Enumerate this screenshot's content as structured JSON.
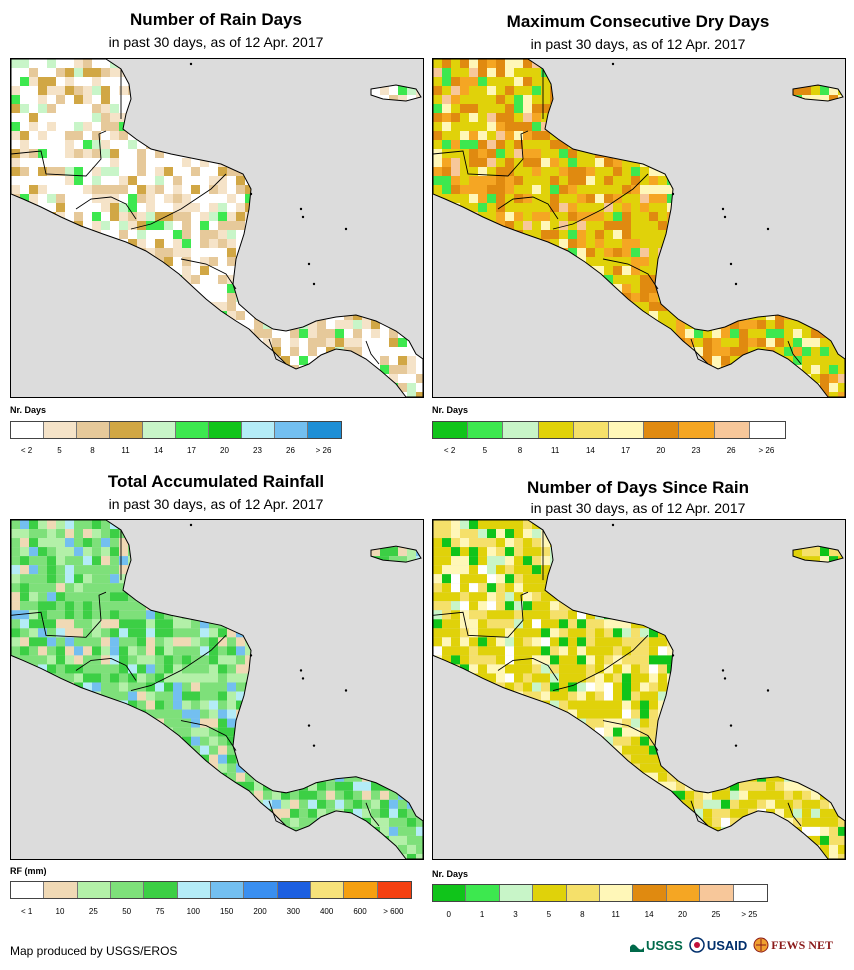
{
  "panels": [
    {
      "title": "Number of Rain Days",
      "subtitle": "in past 30 days, as of 12 Apr. 2017",
      "legend_title": "Nr. Days",
      "ticks": [
        "< 2",
        "5",
        "8",
        "11",
        "14",
        "17",
        "20",
        "23",
        "26",
        "> 26"
      ],
      "colors": [
        "#ffffff",
        "#f5e3c8",
        "#e6c99a",
        "#d1a745",
        "#c8f5c8",
        "#3de84f",
        "#10c41a",
        "#b4ecf7",
        "#73bff0",
        "#1e8fd6"
      ],
      "map_palette": [
        "#ffffff",
        "#f5e3c8",
        "#e6c99a",
        "#d1a745",
        "#c8f5c8",
        "#3de84f"
      ]
    },
    {
      "title": "Maximum Consecutive Dry Days",
      "subtitle": "in past 30 days, as of 12 Apr. 2017",
      "legend_title": "Nr. Days",
      "ticks": [
        "< 2",
        "5",
        "8",
        "11",
        "14",
        "17",
        "20",
        "23",
        "26",
        "> 26"
      ],
      "colors": [
        "#10c41a",
        "#3de84f",
        "#c8f5c8",
        "#e0d20a",
        "#f5e06a",
        "#fff7b8",
        "#e08a10",
        "#f5a623",
        "#f7c79a",
        "#ffffff"
      ],
      "map_palette": [
        "#e0d20a",
        "#e08a10",
        "#f5a623",
        "#fff7b8",
        "#3de84f",
        "#f7c79a"
      ]
    },
    {
      "title": "Total Accumulated Rainfall",
      "subtitle": "in past 30 days, as of 12 Apr. 2017",
      "legend_title": "RF (mm)",
      "ticks": [
        "< 1",
        "10",
        "25",
        "50",
        "75",
        "100",
        "150",
        "200",
        "300",
        "400",
        "600",
        "> 600"
      ],
      "colors": [
        "#ffffff",
        "#f0d9b5",
        "#b3f0a8",
        "#7ee07a",
        "#3ccf45",
        "#b4ecf7",
        "#73bff0",
        "#3a8ff0",
        "#1c5fe0",
        "#f7e27a",
        "#f5a010",
        "#f54010"
      ],
      "map_palette": [
        "#7ee07a",
        "#3ccf45",
        "#b3f0a8",
        "#f0d9b5",
        "#73bff0",
        "#b4ecf7"
      ]
    },
    {
      "title": "Number of Days Since Rain",
      "subtitle": "in past 30 days, as of 12 Apr. 2017",
      "legend_title": "Nr. Days",
      "ticks": [
        "0",
        "1",
        "3",
        "5",
        "8",
        "11",
        "14",
        "20",
        "25",
        "> 25"
      ],
      "colors": [
        "#10c41a",
        "#3de84f",
        "#c8f5c8",
        "#e0d20a",
        "#f5e06a",
        "#fff7b8",
        "#e08a10",
        "#f5a623",
        "#f7c79a",
        "#ffffff"
      ],
      "map_palette": [
        "#e0d20a",
        "#f5e06a",
        "#fff7b8",
        "#10c41a",
        "#c8f5c8",
        "#ffffff"
      ]
    }
  ],
  "credit": "Map produced by USGS/EROS",
  "logos": [
    "USGS",
    "USAID",
    "FEWS NET"
  ]
}
